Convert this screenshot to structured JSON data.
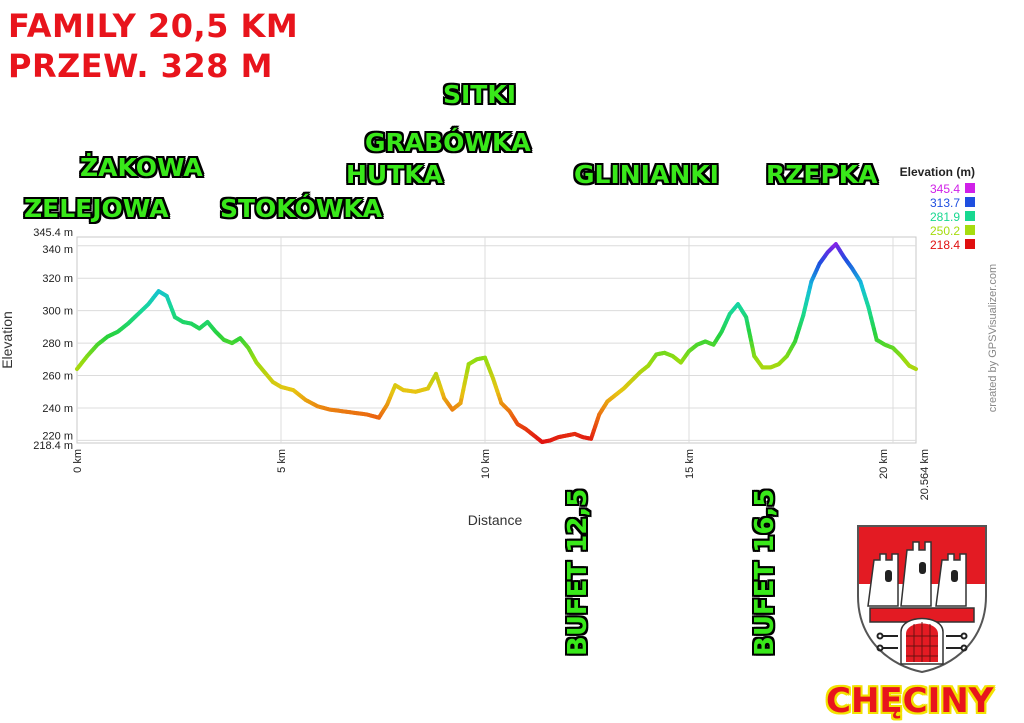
{
  "header": {
    "line1": "FAMILY 20,5 KM",
    "line2": "PRZEW. 328 M"
  },
  "places": {
    "zelejowa": "ZELEJOWA",
    "zakowa": "ŻAKOWA",
    "stokowka": "STOKÓWKA",
    "hutka": "HUTKA",
    "grabowka": "GRABÓWKA",
    "sitki": "SITKI",
    "glinianki": "GLINIANKI",
    "rzepka": "RZEPKA"
  },
  "bufets": {
    "first": "BUFET 12,5",
    "second": "BUFET 16,5"
  },
  "town": "CHĘCINY",
  "credit": "created by GPSVisualizer.com",
  "legend": {
    "title": "Elevation (m)",
    "items": [
      {
        "label": "345.4",
        "color": "#d020e8"
      },
      {
        "label": "313.7",
        "color": "#1f4fe0"
      },
      {
        "label": "281.9",
        "color": "#18d890"
      },
      {
        "label": "250.2",
        "color": "#a6dc0e"
      },
      {
        "label": "218.4",
        "color": "#e01010"
      }
    ]
  },
  "chart_data": {
    "type": "line",
    "xlabel": "Distance",
    "ylabel": "Elevation",
    "xlim": [
      0,
      20.564
    ],
    "ylim": [
      218.4,
      345.4
    ],
    "x_ticks": [
      "0 km",
      "5 km",
      "10 km",
      "15 km",
      "20 km",
      "20.564 km"
    ],
    "y_ticks": [
      "345.4 m",
      "340 m",
      "320 m",
      "300 m",
      "280 m",
      "260 m",
      "240 m",
      "220 m",
      "218.4 m"
    ],
    "series": [
      {
        "x": [
          0,
          0.25,
          0.5,
          0.75,
          1.0,
          1.25,
          1.5,
          1.75,
          2.0,
          2.2,
          2.4,
          2.6,
          2.8,
          3.0,
          3.2,
          3.4,
          3.6,
          3.8,
          4.0,
          4.2,
          4.4,
          4.6,
          4.8,
          5.0,
          5.3,
          5.6,
          5.9,
          6.2,
          6.5,
          6.8,
          7.1,
          7.4,
          7.6,
          7.8,
          8.0,
          8.3,
          8.6,
          8.8,
          9.0,
          9.2,
          9.4,
          9.6,
          9.8,
          10.0,
          10.2,
          10.4,
          10.6,
          10.8,
          11.0,
          11.2,
          11.4,
          11.6,
          11.8,
          12.0,
          12.2,
          12.4,
          12.6,
          12.8,
          13.0,
          13.2,
          13.4,
          13.6,
          13.8,
          14.0,
          14.2,
          14.4,
          14.6,
          14.8,
          15.0,
          15.2,
          15.4,
          15.6,
          15.8,
          16.0,
          16.2,
          16.4,
          16.6,
          16.8,
          17.0,
          17.2,
          17.4,
          17.6,
          17.8,
          18.0,
          18.2,
          18.4,
          18.6,
          18.8,
          19.0,
          19.2,
          19.4,
          19.6,
          19.8,
          20.0,
          20.2,
          20.4,
          20.564
        ],
        "y": [
          264,
          272,
          279,
          284,
          287,
          292,
          298,
          304,
          312,
          309,
          296,
          293,
          292,
          289,
          293,
          287,
          282,
          280,
          283,
          277,
          268,
          262,
          256,
          253,
          251,
          245,
          241,
          239,
          238,
          237,
          236,
          234,
          242,
          254,
          251,
          250,
          252,
          261,
          246,
          239,
          243,
          267,
          270,
          271,
          258,
          243,
          238,
          230,
          227,
          223,
          219,
          220,
          222,
          223,
          224,
          222,
          221,
          236,
          244,
          248,
          252,
          257,
          262,
          266,
          273,
          274,
          272,
          268,
          275,
          279,
          281,
          279,
          287,
          298,
          304,
          296,
          272,
          265,
          265,
          267,
          272,
          281,
          297,
          318,
          329,
          336,
          341,
          333,
          326,
          318,
          302,
          282,
          279,
          277,
          272,
          266,
          264
        ]
      }
    ]
  }
}
